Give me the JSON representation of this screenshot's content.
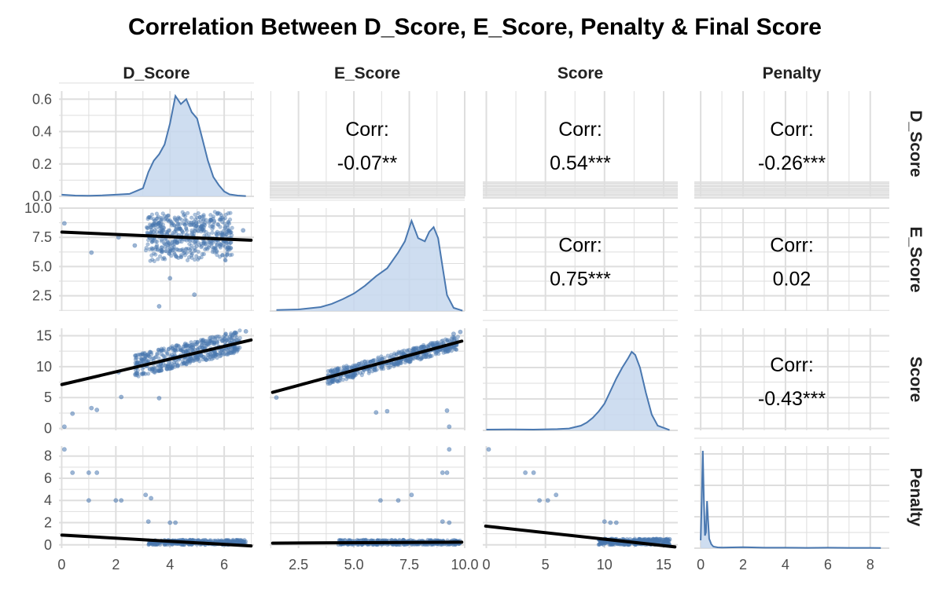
{
  "title": "Correlation Between D_Score, E_Score, Penalty & Final Score",
  "colors": {
    "point": "#4a78b0",
    "density_line": "#4a78b0",
    "density_fill": "#c6d7ed",
    "fit": "#000000",
    "grid": "#dedede"
  },
  "chart_data": {
    "type": "scatter",
    "layout": "pairs-matrix",
    "variables": [
      "D_Score",
      "E_Score",
      "Score",
      "Penalty"
    ],
    "column_labels": [
      "D_Score",
      "E_Score",
      "Score",
      "Penalty"
    ],
    "row_labels": [
      "D_Score",
      "E_Score",
      "Score",
      "Penalty"
    ],
    "grid": true,
    "ranges": {
      "D_Score": [
        -0.1,
        7.1
      ],
      "E_Score": [
        1.2,
        10.0
      ],
      "Score": [
        -0.3,
        16.2
      ],
      "Penalty": [
        -0.3,
        8.9
      ]
    },
    "x_ticks": {
      "D_Score": [
        "0",
        "2",
        "4",
        "6"
      ],
      "E_Score": [
        "2.5",
        "5.0",
        "7.5",
        "10.0"
      ],
      "Score": [
        "0",
        "5",
        "10",
        "15"
      ],
      "Penalty": [
        "0",
        "2",
        "4",
        "6",
        "8"
      ]
    },
    "y_ticks": {
      "D_Score": [
        "0.0",
        "0.2",
        "0.4",
        "0.6"
      ],
      "E_Score": [
        "2.5",
        "5.0",
        "7.5",
        "10.0"
      ],
      "Score": [
        "0",
        "5",
        "10",
        "15"
      ],
      "Penalty": [
        "0",
        "2",
        "4",
        "6",
        "8"
      ]
    },
    "diag_density_ylim": [
      0,
      0.65
    ],
    "correlations": [
      {
        "row": "D_Score",
        "col": "E_Score",
        "label": "Corr:",
        "value": "-0.07**"
      },
      {
        "row": "D_Score",
        "col": "Score",
        "label": "Corr:",
        "value": "0.54***"
      },
      {
        "row": "D_Score",
        "col": "Penalty",
        "label": "Corr:",
        "value": "-0.26***"
      },
      {
        "row": "E_Score",
        "col": "Score",
        "label": "Corr:",
        "value": "0.75***"
      },
      {
        "row": "E_Score",
        "col": "Penalty",
        "label": "Corr:",
        "value": "0.02"
      },
      {
        "row": "Score",
        "col": "Penalty",
        "label": "Corr:",
        "value": "-0.43***"
      }
    ],
    "densities": [
      {
        "var": "D_Score",
        "x": [
          0,
          0.5,
          1,
          1.5,
          2,
          2.5,
          3,
          3.2,
          3.4,
          3.6,
          3.8,
          4,
          4.2,
          4.4,
          4.6,
          4.8,
          5,
          5.2,
          5.4,
          5.6,
          5.8,
          6,
          6.2,
          6.5,
          6.8
        ],
        "y": [
          0.01,
          0.005,
          0.004,
          0.006,
          0.01,
          0.015,
          0.05,
          0.15,
          0.22,
          0.26,
          0.32,
          0.45,
          0.62,
          0.57,
          0.6,
          0.52,
          0.48,
          0.35,
          0.22,
          0.12,
          0.07,
          0.03,
          0.012,
          0.005,
          0.002
        ]
      },
      {
        "var": "E_Score",
        "x": [
          1.5,
          2.5,
          3.5,
          4,
          4.5,
          5,
          5.5,
          6,
          6.5,
          7,
          7.3,
          7.6,
          7.9,
          8.2,
          8.4,
          8.6,
          8.8,
          9,
          9.2,
          9.5,
          9.9
        ],
        "y": [
          0.006,
          0.01,
          0.025,
          0.045,
          0.075,
          0.11,
          0.16,
          0.22,
          0.27,
          0.37,
          0.44,
          0.57,
          0.46,
          0.44,
          0.5,
          0.53,
          0.46,
          0.28,
          0.1,
          0.02,
          0.002
        ]
      },
      {
        "var": "Score",
        "x": [
          0,
          2,
          4,
          6,
          7,
          8,
          8.5,
          9,
          9.5,
          10,
          10.5,
          11,
          11.5,
          12,
          12.3,
          12.6,
          13,
          13.5,
          14,
          14.5,
          15.5
        ],
        "y": [
          0.005,
          0.006,
          0.005,
          0.008,
          0.012,
          0.03,
          0.05,
          0.08,
          0.12,
          0.17,
          0.25,
          0.33,
          0.4,
          0.46,
          0.5,
          0.48,
          0.4,
          0.24,
          0.1,
          0.03,
          0.002
        ]
      },
      {
        "var": "Penalty",
        "x": [
          0,
          0.05,
          0.1,
          0.15,
          0.2,
          0.25,
          0.3,
          0.35,
          0.4,
          0.5,
          0.6,
          0.8,
          1,
          2,
          3,
          4,
          5,
          6,
          7,
          8,
          8.5
        ],
        "y": [
          0.05,
          0.3,
          0.62,
          0.32,
          0.08,
          0.1,
          0.3,
          0.18,
          0.06,
          0.025,
          0.01,
          0.005,
          0.004,
          0.006,
          0.003,
          0.003,
          0.002,
          0.003,
          0.002,
          0.002,
          0.001
        ]
      }
    ],
    "fit_lines": [
      {
        "x": "D_Score",
        "y": "E_Score",
        "intercept": 7.95,
        "slope": -0.1
      },
      {
        "x": "D_Score",
        "y": "Score",
        "intercept": 7.1,
        "slope": 1.03
      },
      {
        "x": "E_Score",
        "y": "Score",
        "intercept": 4.55,
        "slope": 0.97
      },
      {
        "x": "D_Score",
        "y": "Penalty",
        "intercept": 0.88,
        "slope": -0.14
      },
      {
        "x": "E_Score",
        "y": "Penalty",
        "intercept": 0.14,
        "slope": 0.01
      },
      {
        "x": "Score",
        "y": "Penalty",
        "intercept": 1.68,
        "slope": -0.117
      }
    ],
    "scatter_points": {
      "D_Score_vs_E_Score": [
        [
          0.1,
          8.7
        ],
        [
          1.1,
          6.2
        ],
        [
          2.1,
          7.5
        ],
        [
          2.7,
          6.8
        ],
        [
          4.9,
          2.6
        ],
        [
          3.6,
          1.6
        ],
        [
          6.2,
          7.9
        ],
        [
          6.7,
          8.1
        ],
        [
          4.0,
          4.0
        ],
        [
          5.5,
          9.0
        ]
      ],
      "D_Score_vs_Score": [
        [
          0.1,
          0.3
        ],
        [
          0.4,
          2.4
        ],
        [
          1.1,
          3.3
        ],
        [
          1.3,
          3.0
        ],
        [
          2.1,
          9.1
        ],
        [
          2.2,
          5.1
        ],
        [
          3.6,
          4.9
        ],
        [
          6.8,
          15.7
        ],
        [
          6.4,
          15.5
        ]
      ],
      "E_Score_vs_Score": [
        [
          1.5,
          5.0
        ],
        [
          6.0,
          2.6
        ],
        [
          6.5,
          2.8
        ],
        [
          9.3,
          0.3
        ],
        [
          9.2,
          2.9
        ],
        [
          9.8,
          15.6
        ],
        [
          9.5,
          15.3
        ]
      ],
      "D_Score_vs_Penalty": [
        [
          0.1,
          8.6
        ],
        [
          0.4,
          6.5
        ],
        [
          1.0,
          6.5
        ],
        [
          1.3,
          6.5
        ],
        [
          1.0,
          4.0
        ],
        [
          2.0,
          4.0
        ],
        [
          2.2,
          4.0
        ],
        [
          3.1,
          4.5
        ],
        [
          3.3,
          4.2
        ],
        [
          3.2,
          2.1
        ],
        [
          4.0,
          2.0
        ],
        [
          4.2,
          2.0
        ]
      ],
      "E_Score_vs_Penalty": [
        [
          9.3,
          8.6
        ],
        [
          9.0,
          6.5
        ],
        [
          9.2,
          6.5
        ],
        [
          6.2,
          4.0
        ],
        [
          7.0,
          4.0
        ],
        [
          7.6,
          4.5
        ],
        [
          9.0,
          2.1
        ],
        [
          9.3,
          2.0
        ]
      ],
      "Score_vs_Penalty": [
        [
          0.2,
          8.6
        ],
        [
          3.3,
          6.5
        ],
        [
          4.0,
          6.5
        ],
        [
          4.5,
          4.0
        ],
        [
          5.2,
          4.0
        ],
        [
          5.9,
          4.5
        ],
        [
          10.0,
          2.1
        ],
        [
          10.5,
          2.0
        ],
        [
          11.0,
          2.0
        ],
        [
          15.5,
          0.5
        ]
      ]
    }
  }
}
